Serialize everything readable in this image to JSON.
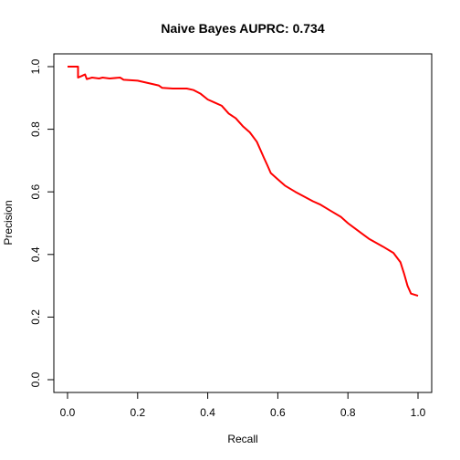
{
  "chart_data": {
    "type": "line",
    "title": "Naive Bayes AUPRC: 0.734",
    "xlabel": "Recall",
    "ylabel": "Precision",
    "xlim": [
      0,
      1
    ],
    "ylim": [
      0,
      1
    ],
    "xticks": [
      "0.0",
      "0.2",
      "0.4",
      "0.6",
      "0.8",
      "1.0"
    ],
    "yticks": [
      "0.0",
      "0.2",
      "0.4",
      "0.6",
      "0.8",
      "1.0"
    ],
    "grid": false,
    "legend": "none",
    "series": [
      {
        "color": "#ff0000",
        "points": [
          [
            0.0,
            1.0
          ],
          [
            0.03,
            1.0
          ],
          [
            0.03,
            0.965
          ],
          [
            0.04,
            0.97
          ],
          [
            0.05,
            0.975
          ],
          [
            0.055,
            0.96
          ],
          [
            0.07,
            0.965
          ],
          [
            0.09,
            0.962
          ],
          [
            0.1,
            0.965
          ],
          [
            0.12,
            0.962
          ],
          [
            0.15,
            0.965
          ],
          [
            0.16,
            0.958
          ],
          [
            0.2,
            0.955
          ],
          [
            0.24,
            0.945
          ],
          [
            0.26,
            0.94
          ],
          [
            0.27,
            0.932
          ],
          [
            0.3,
            0.93
          ],
          [
            0.34,
            0.93
          ],
          [
            0.36,
            0.925
          ],
          [
            0.38,
            0.913
          ],
          [
            0.4,
            0.895
          ],
          [
            0.42,
            0.885
          ],
          [
            0.44,
            0.875
          ],
          [
            0.46,
            0.85
          ],
          [
            0.48,
            0.835
          ],
          [
            0.5,
            0.81
          ],
          [
            0.52,
            0.79
          ],
          [
            0.54,
            0.76
          ],
          [
            0.55,
            0.735
          ],
          [
            0.56,
            0.71
          ],
          [
            0.57,
            0.685
          ],
          [
            0.58,
            0.66
          ],
          [
            0.6,
            0.64
          ],
          [
            0.62,
            0.62
          ],
          [
            0.65,
            0.6
          ],
          [
            0.68,
            0.582
          ],
          [
            0.7,
            0.57
          ],
          [
            0.72,
            0.56
          ],
          [
            0.75,
            0.54
          ],
          [
            0.78,
            0.52
          ],
          [
            0.8,
            0.5
          ],
          [
            0.83,
            0.475
          ],
          [
            0.86,
            0.45
          ],
          [
            0.9,
            0.425
          ],
          [
            0.93,
            0.405
          ],
          [
            0.95,
            0.375
          ],
          [
            0.96,
            0.34
          ],
          [
            0.97,
            0.3
          ],
          [
            0.98,
            0.275
          ],
          [
            1.0,
            0.268
          ]
        ]
      }
    ]
  }
}
